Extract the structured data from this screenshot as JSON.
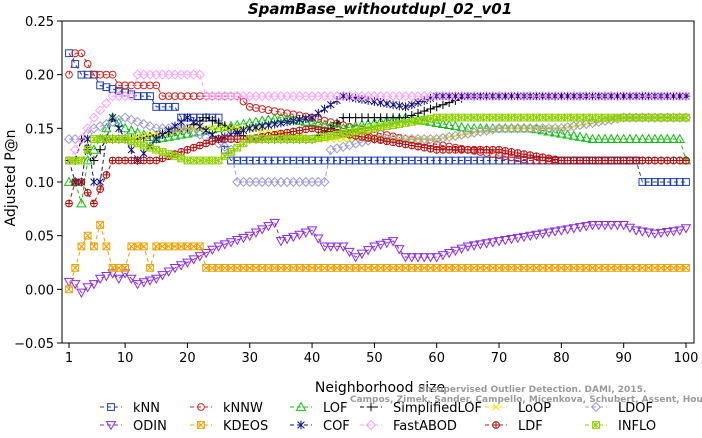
{
  "chart_data": {
    "type": "line",
    "title": "SpamBase_withoutdupl_02_v01",
    "xlabel": "Neighborhood size",
    "ylabel": "Adjusted P@n",
    "xlim": [
      1,
      100
    ],
    "ylim": [
      -0.05,
      0.25
    ],
    "xticks": [
      1,
      10,
      20,
      30,
      40,
      50,
      60,
      70,
      80,
      90,
      100
    ],
    "yticks": [
      -0.05,
      0.0,
      0.05,
      0.1,
      0.15,
      0.2,
      0.25
    ],
    "ytick_labels": [
      "−0.05",
      "0.00",
      "0.05",
      "0.10",
      "0.15",
      "0.20",
      "0.25"
    ],
    "grid": false,
    "legend_position": "bottom",
    "series": [
      {
        "name": "kNN",
        "color": "#1f3fb4",
        "marker": "square",
        "points": [
          [
            1,
            0.22
          ],
          [
            2,
            0.21
          ],
          [
            3,
            0.2
          ],
          [
            5,
            0.2
          ],
          [
            6,
            0.19
          ],
          [
            12,
            0.18
          ],
          [
            14,
            0.18
          ],
          [
            15,
            0.17
          ],
          [
            18,
            0.17
          ],
          [
            19,
            0.16
          ],
          [
            25,
            0.16
          ],
          [
            26,
            0.13
          ],
          [
            27,
            0.12
          ],
          [
            50,
            0.12
          ],
          [
            70,
            0.12
          ],
          [
            92,
            0.12
          ],
          [
            93,
            0.1
          ],
          [
            100,
            0.1
          ]
        ]
      },
      {
        "name": "kNNW",
        "color": "#d02020",
        "marker": "circle",
        "points": [
          [
            1,
            0.2
          ],
          [
            2,
            0.22
          ],
          [
            3,
            0.22
          ],
          [
            4,
            0.21
          ],
          [
            5,
            0.2
          ],
          [
            8,
            0.2
          ],
          [
            9,
            0.19
          ],
          [
            15,
            0.19
          ],
          [
            16,
            0.18
          ],
          [
            28,
            0.18
          ],
          [
            30,
            0.17
          ],
          [
            40,
            0.16
          ],
          [
            47,
            0.15
          ],
          [
            55,
            0.14
          ],
          [
            65,
            0.13
          ],
          [
            75,
            0.12
          ],
          [
            100,
            0.12
          ]
        ]
      },
      {
        "name": "LOF",
        "color": "#10c010",
        "marker": "triangle-up",
        "points": [
          [
            1,
            0.1
          ],
          [
            2,
            0.1
          ],
          [
            3,
            0.08
          ],
          [
            4,
            0.12
          ],
          [
            6,
            0.14
          ],
          [
            8,
            0.16
          ],
          [
            10,
            0.15
          ],
          [
            15,
            0.14
          ],
          [
            25,
            0.15
          ],
          [
            35,
            0.16
          ],
          [
            45,
            0.15
          ],
          [
            55,
            0.16
          ],
          [
            65,
            0.15
          ],
          [
            75,
            0.15
          ],
          [
            85,
            0.14
          ],
          [
            99,
            0.14
          ],
          [
            100,
            0.12
          ]
        ]
      },
      {
        "name": "SimplifiedLOF",
        "color": "#000000",
        "marker": "plus",
        "points": [
          [
            1,
            0.12
          ],
          [
            2,
            0.12
          ],
          [
            3,
            0.14
          ],
          [
            5,
            0.12
          ],
          [
            7,
            0.14
          ],
          [
            12,
            0.14
          ],
          [
            20,
            0.15
          ],
          [
            23,
            0.16
          ],
          [
            27,
            0.15
          ],
          [
            30,
            0.14
          ],
          [
            40,
            0.14
          ],
          [
            43,
            0.15
          ],
          [
            45,
            0.16
          ],
          [
            55,
            0.16
          ],
          [
            65,
            0.18
          ],
          [
            100,
            0.18
          ]
        ]
      },
      {
        "name": "LoOP",
        "color": "#e8e800",
        "marker": "x",
        "points": [
          [
            1,
            0.12
          ],
          [
            3,
            0.12
          ],
          [
            5,
            0.14
          ],
          [
            10,
            0.14
          ],
          [
            20,
            0.15
          ],
          [
            30,
            0.15
          ],
          [
            40,
            0.14
          ],
          [
            50,
            0.14
          ],
          [
            60,
            0.14
          ],
          [
            70,
            0.15
          ],
          [
            80,
            0.15
          ],
          [
            90,
            0.16
          ],
          [
            100,
            0.16
          ]
        ]
      },
      {
        "name": "LDOF",
        "color": "#9a9ad8",
        "marker": "diamond",
        "points": [
          [
            1,
            0.14
          ],
          [
            3,
            0.14
          ],
          [
            5,
            0.15
          ],
          [
            10,
            0.16
          ],
          [
            15,
            0.15
          ],
          [
            20,
            0.15
          ],
          [
            27,
            0.13
          ],
          [
            28,
            0.1
          ],
          [
            42,
            0.1
          ],
          [
            43,
            0.13
          ],
          [
            50,
            0.14
          ],
          [
            60,
            0.14
          ],
          [
            70,
            0.15
          ],
          [
            80,
            0.15
          ],
          [
            90,
            0.16
          ],
          [
            100,
            0.16
          ]
        ]
      },
      {
        "name": "ODIN",
        "color": "#8a2be2",
        "marker": "triangle-down",
        "points": [
          [
            1,
            0.007
          ],
          [
            2,
            0.005
          ],
          [
            3,
            -0.003
          ],
          [
            4,
            0.002
          ],
          [
            5,
            0.005
          ],
          [
            6,
            0.01
          ],
          [
            8,
            0.015
          ],
          [
            9,
            0.01
          ],
          [
            10,
            0.015
          ],
          [
            11,
            0.01
          ],
          [
            12,
            0.005
          ],
          [
            15,
            0.01
          ],
          [
            18,
            0.02
          ],
          [
            20,
            0.025
          ],
          [
            25,
            0.04
          ],
          [
            30,
            0.05
          ],
          [
            34,
            0.062
          ],
          [
            35,
            0.045
          ],
          [
            40,
            0.055
          ],
          [
            42,
            0.04
          ],
          [
            45,
            0.04
          ],
          [
            47,
            0.03
          ],
          [
            50,
            0.04
          ],
          [
            53,
            0.045
          ],
          [
            55,
            0.03
          ],
          [
            60,
            0.03
          ],
          [
            65,
            0.04
          ],
          [
            70,
            0.045
          ],
          [
            75,
            0.05
          ],
          [
            80,
            0.055
          ],
          [
            85,
            0.06
          ],
          [
            90,
            0.06
          ],
          [
            92,
            0.055
          ],
          [
            95,
            0.052
          ],
          [
            99,
            0.055
          ],
          [
            100,
            0.057
          ]
        ]
      },
      {
        "name": "KDEOS",
        "color": "#f0a000",
        "marker": "square-x",
        "points": [
          [
            1,
            0.0
          ],
          [
            2,
            0.02
          ],
          [
            3,
            0.04
          ],
          [
            4,
            0.05
          ],
          [
            5,
            0.04
          ],
          [
            6,
            0.06
          ],
          [
            7,
            0.04
          ],
          [
            8,
            0.02
          ],
          [
            10,
            0.02
          ],
          [
            11,
            0.04
          ],
          [
            13,
            0.04
          ],
          [
            14,
            0.02
          ],
          [
            15,
            0.04
          ],
          [
            22,
            0.04
          ],
          [
            23,
            0.02
          ],
          [
            50,
            0.02
          ],
          [
            100,
            0.02
          ]
        ]
      },
      {
        "name": "COF",
        "color": "#101080",
        "marker": "asterisk",
        "points": [
          [
            1,
            0.12
          ],
          [
            2,
            0.1
          ],
          [
            3,
            0.1
          ],
          [
            4,
            0.14
          ],
          [
            5,
            0.1
          ],
          [
            6,
            0.1
          ],
          [
            7,
            0.14
          ],
          [
            8,
            0.16
          ],
          [
            10,
            0.14
          ],
          [
            12,
            0.12
          ],
          [
            15,
            0.14
          ],
          [
            20,
            0.16
          ],
          [
            25,
            0.14
          ],
          [
            30,
            0.15
          ],
          [
            40,
            0.16
          ],
          [
            45,
            0.18
          ],
          [
            55,
            0.17
          ],
          [
            60,
            0.18
          ],
          [
            100,
            0.18
          ]
        ]
      },
      {
        "name": "FastABOD",
        "color": "#ffa0ff",
        "marker": "diamond",
        "points": [
          [
            1,
            0.12
          ],
          [
            3,
            0.14
          ],
          [
            5,
            0.16
          ],
          [
            8,
            0.18
          ],
          [
            11,
            0.18
          ],
          [
            12,
            0.2
          ],
          [
            22,
            0.2
          ],
          [
            23,
            0.18
          ],
          [
            50,
            0.18
          ],
          [
            100,
            0.18
          ]
        ]
      },
      {
        "name": "LDF",
        "color": "#b01010",
        "marker": "circle-plus",
        "points": [
          [
            1,
            0.08
          ],
          [
            2,
            0.1
          ],
          [
            3,
            0.1
          ],
          [
            5,
            0.08
          ],
          [
            8,
            0.12
          ],
          [
            12,
            0.12
          ],
          [
            15,
            0.12
          ],
          [
            20,
            0.13
          ],
          [
            25,
            0.14
          ],
          [
            30,
            0.14
          ],
          [
            40,
            0.15
          ],
          [
            50,
            0.14
          ],
          [
            60,
            0.13
          ],
          [
            70,
            0.13
          ],
          [
            80,
            0.12
          ],
          [
            100,
            0.12
          ]
        ]
      },
      {
        "name": "INFLO",
        "color": "#90d000",
        "marker": "square-star",
        "points": [
          [
            1,
            0.12
          ],
          [
            3,
            0.12
          ],
          [
            5,
            0.14
          ],
          [
            10,
            0.14
          ],
          [
            15,
            0.13
          ],
          [
            20,
            0.12
          ],
          [
            25,
            0.12
          ],
          [
            30,
            0.14
          ],
          [
            40,
            0.14
          ],
          [
            50,
            0.15
          ],
          [
            60,
            0.16
          ],
          [
            70,
            0.16
          ],
          [
            80,
            0.16
          ],
          [
            90,
            0.16
          ],
          [
            100,
            0.16
          ]
        ]
      }
    ]
  },
  "watermark": {
    "line1": "Unsupervised Outlier Detection. DAMI, 2015.",
    "line2": "Campos, Zimek, Sander, Campello, Micenkova, Schubert, Assent, Houle"
  }
}
